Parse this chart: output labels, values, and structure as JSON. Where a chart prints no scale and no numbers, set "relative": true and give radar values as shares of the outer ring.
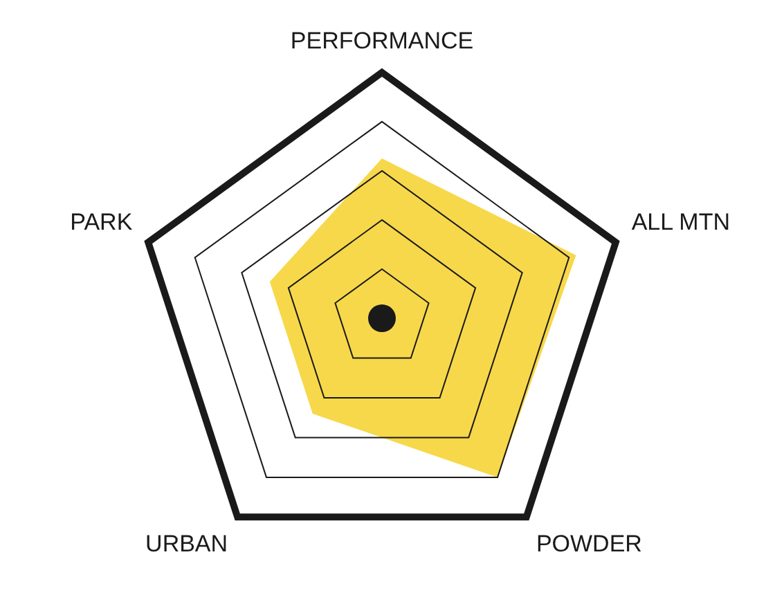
{
  "chart_data": {
    "type": "radar",
    "categories": [
      "PERFORMANCE",
      "ALL MTN",
      "POWDER",
      "URBAN",
      "PARK"
    ],
    "relative": true,
    "grid": true,
    "marker": "none",
    "series": [
      {
        "color": "#f7d84a",
        "values": [
          0.65,
          0.83,
          0.8,
          0.48,
          0.48
        ]
      }
    ]
  }
}
